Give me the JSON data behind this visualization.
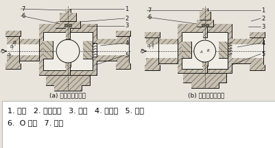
{
  "bg_color": "#e8e4dc",
  "title_a": "(a) 球前密封式球阀",
  "title_b": "(b) 球后密封式球阀",
  "legend_line1": "1. 球体   2. 活动套筒   3. 弹簧   4. 密封座   5. 轴承",
  "legend_line2": "6.  O 形圈   7. 压盖",
  "font_size_caption": 6.5,
  "font_size_legend": 8.0,
  "font_size_num": 6.0,
  "lw_main": 0.7,
  "hatch_lw": 0.4,
  "line_color": "#111111",
  "hatch_color": "#444444",
  "fill_hatch": "#c8c0b0",
  "fill_white": "#f0ede6",
  "fill_mid": "#a09080",
  "fill_dark": "#707060",
  "fill_gray": "#888878"
}
